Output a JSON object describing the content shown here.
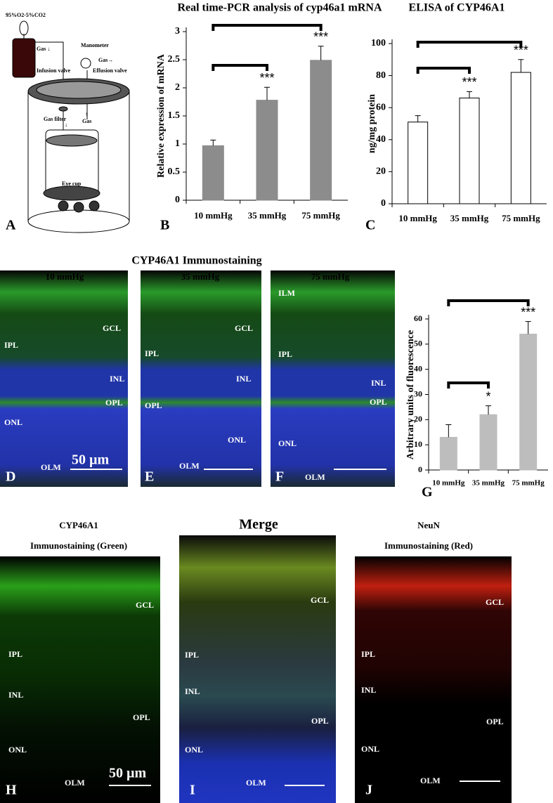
{
  "chart_data": [
    {
      "type": "bar",
      "title": "Real time-PCR analysis of cyp46a1 mRNA",
      "ylabel": "Relative expression of  mRNA",
      "categories": [
        "10 mmHg",
        "35 mmHg",
        "75 mmHg"
      ],
      "values": [
        0.97,
        1.78,
        2.49
      ],
      "errors": [
        0.1,
        0.23,
        0.25
      ],
      "significance": [
        null,
        "***",
        "***"
      ],
      "color": "#8c8c8c",
      "edgecolor": "#8c8c8c",
      "ylim": [
        0,
        3
      ],
      "yticks": [
        0,
        0.5,
        1,
        1.5,
        2,
        2.5,
        3
      ]
    },
    {
      "type": "bar",
      "title": "ELISA of CYP46A1",
      "ylabel": "ng/mg protein",
      "categories": [
        "10 mmHg",
        "35 mmHg",
        "75 mmHg"
      ],
      "values": [
        51,
        66,
        82
      ],
      "errors": [
        4,
        4,
        8
      ],
      "significance": [
        null,
        "***",
        "***"
      ],
      "color": "#ffffff",
      "edgecolor": "#000000",
      "ylim": [
        0,
        100
      ],
      "yticks": [
        0,
        20,
        40,
        60,
        80,
        100
      ]
    },
    {
      "type": "bar",
      "ylabel": "Arbitrary units of fluorescence",
      "categories": [
        "10 mmHg",
        "35 mmHg",
        "75 mmHg"
      ],
      "values": [
        13,
        22,
        54
      ],
      "errors": [
        5,
        3.5,
        5
      ],
      "significance": [
        null,
        "*",
        "***"
      ],
      "color": "#bdbdbd",
      "edgecolor": "#bdbdbd",
      "ylim": [
        0,
        60
      ],
      "yticks": [
        0,
        10,
        20,
        30,
        40,
        50,
        60
      ]
    }
  ],
  "panel_letters": [
    "A",
    "B",
    "C",
    "D",
    "E",
    "F",
    "G",
    "H",
    "I",
    "J"
  ],
  "diagram": {
    "labels": [
      "95%O2-5%CO2",
      "Gas ↓",
      "Manometer",
      "Gas→",
      "Infusion valve",
      "Effusion valve",
      "Gas filter",
      "↓",
      "↑",
      "Gas",
      "Eye cup"
    ]
  },
  "immunostaining": {
    "title": "CYP46A1 Immunostaining",
    "panels": [
      {
        "title": "10 mmHg",
        "layers": [
          "GCL",
          "IPL",
          "INL",
          "OPL",
          "ONL",
          "OLM"
        ],
        "scale": "50 µm"
      },
      {
        "title": "35 mmHg",
        "layers": [
          "GCL",
          "IPL",
          "INL",
          "OPL",
          "ONL",
          "OLM"
        ]
      },
      {
        "title": "75 mmHg",
        "layers": [
          "ILM",
          "IPL",
          "INL",
          "OPL",
          "ONL",
          "OLM"
        ]
      }
    ]
  },
  "colocalization": {
    "panels": [
      {
        "title": [
          "CYP46A1",
          "Immunostaining (Green)"
        ],
        "layers": [
          "GCL",
          "IPL",
          "INL",
          "OPL",
          "ONL",
          "OLM"
        ],
        "scale": "50 µm"
      },
      {
        "title": [
          "Merge"
        ],
        "layers": [
          "GCL",
          "IPL",
          "INL",
          "OPL",
          "ONL",
          "OLM"
        ]
      },
      {
        "title": [
          "NeuN",
          "Immunostaining (Red)"
        ],
        "layers": [
          "GCL",
          "IPL",
          "INL",
          "OPL",
          "ONL",
          "OLM"
        ]
      }
    ]
  }
}
